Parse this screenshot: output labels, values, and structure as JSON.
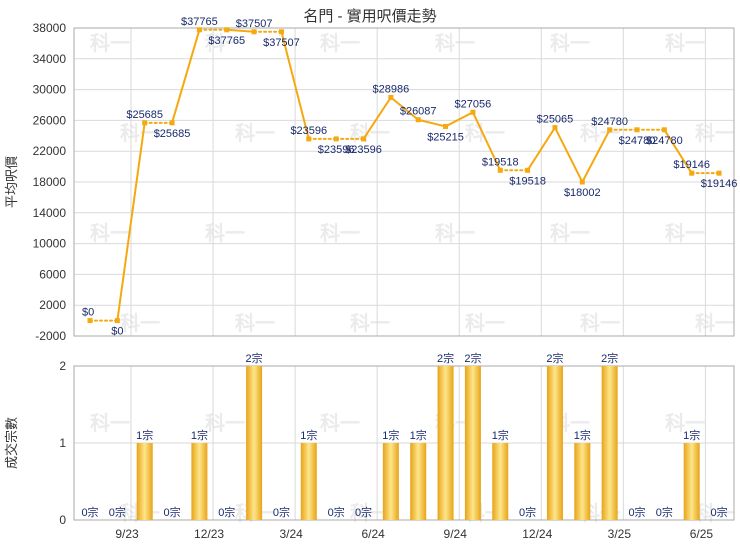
{
  "title": "名門 - 實用呎價走勢",
  "watermark": "科一",
  "colors": {
    "line": "#f5a90f",
    "bar_light": "#fde68a",
    "bar_dark": "#e8a317",
    "grid": "#d9d9d9",
    "label": "#1a2a6c"
  },
  "chart_data": [
    {
      "type": "line",
      "title": "名門 - 實用呎價走勢",
      "ylabel": "平均呎價",
      "ylim": [
        -2000,
        38000
      ],
      "yticks": [
        -2000,
        2000,
        6000,
        10000,
        14000,
        18000,
        22000,
        26000,
        30000,
        34000,
        38000
      ],
      "grid": true,
      "values": [
        0,
        0,
        25685,
        25685,
        37765,
        37765,
        37507,
        37507,
        23596,
        23596,
        23596,
        28986,
        26087,
        25215,
        27056,
        19518,
        19518,
        25065,
        18002,
        24780,
        24780,
        24780,
        19146,
        19146
      ],
      "labels": [
        "$0",
        "$0",
        "$25685",
        "$25685",
        "$37765",
        "$37765",
        "$37507",
        "$37507",
        "$23596",
        "$23596",
        "$23596",
        "$28986",
        "$26087",
        "$25215",
        "$27056",
        "$19518",
        "$19518",
        "$25065",
        "$18002",
        "$24780",
        "$24780",
        "$24780",
        "$19146",
        "$19146"
      ],
      "dotted_segments": [
        0,
        2,
        4,
        6,
        8,
        9,
        15,
        19,
        20,
        22
      ]
    },
    {
      "type": "bar",
      "ylabel": "成交宗數",
      "ylim": [
        0,
        2
      ],
      "yticks": [
        "0",
        "1",
        "2"
      ],
      "grid": true,
      "values": [
        0,
        0,
        1,
        0,
        1,
        0,
        2,
        0,
        1,
        0,
        0,
        1,
        1,
        2,
        2,
        1,
        0,
        2,
        1,
        2,
        0,
        0,
        1,
        0
      ],
      "labels": [
        "0宗",
        "0宗",
        "1宗",
        "0宗",
        "1宗",
        "0宗",
        "2宗",
        "0宗",
        "1宗",
        "0宗",
        "0宗",
        "1宗",
        "1宗",
        "2宗",
        "2宗",
        "1宗",
        "0宗",
        "2宗",
        "1宗",
        "2宗",
        "0宗",
        "0宗",
        "1宗",
        "0宗"
      ],
      "x_tick_labels": [
        "9/23",
        "12/23",
        "3/24",
        "6/24",
        "9/24",
        "12/24",
        "3/25",
        "6/25"
      ],
      "x_tick_months": [
        2,
        5,
        8,
        11,
        14,
        17,
        20,
        23
      ]
    }
  ]
}
